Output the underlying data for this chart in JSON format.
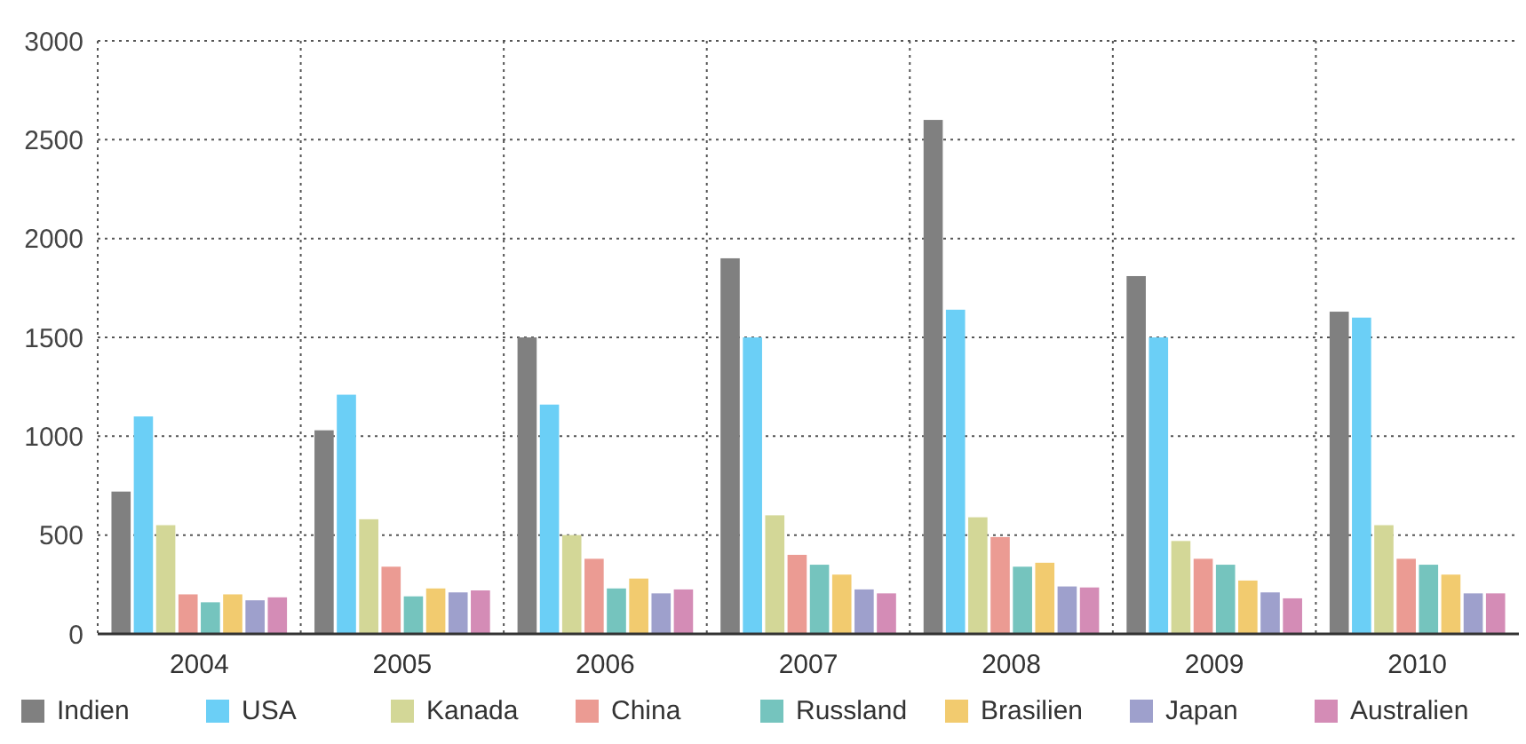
{
  "chart_data": {
    "type": "bar",
    "categories": [
      "2004",
      "2005",
      "2006",
      "2007",
      "2008",
      "2009",
      "2010"
    ],
    "series": [
      {
        "name": "Indien",
        "color": "#808080",
        "values": [
          720,
          1030,
          1500,
          1900,
          2600,
          1810,
          1630
        ]
      },
      {
        "name": "USA",
        "color": "#6bcff6",
        "values": [
          1100,
          1210,
          1160,
          1500,
          1640,
          1500,
          1600
        ]
      },
      {
        "name": "Kanada",
        "color": "#d3d797",
        "values": [
          550,
          580,
          500,
          600,
          590,
          470,
          550
        ]
      },
      {
        "name": "China",
        "color": "#eb9b93",
        "values": [
          200,
          340,
          380,
          400,
          490,
          380,
          380
        ]
      },
      {
        "name": "Russland",
        "color": "#75c4be",
        "values": [
          160,
          190,
          230,
          350,
          340,
          350,
          350
        ]
      },
      {
        "name": "Brasilien",
        "color": "#f2cb6f",
        "values": [
          200,
          230,
          280,
          300,
          360,
          270,
          300
        ]
      },
      {
        "name": "Japan",
        "color": "#9ea0cc",
        "values": [
          170,
          210,
          205,
          225,
          240,
          210,
          205
        ]
      },
      {
        "name": "Australien",
        "color": "#d48cb6",
        "values": [
          185,
          220,
          225,
          205,
          235,
          180,
          205
        ]
      }
    ],
    "ylim": [
      0,
      3000
    ],
    "yticks": [
      0,
      500,
      1000,
      1500,
      2000,
      2500,
      3000
    ],
    "grid": true,
    "legend": "bottom"
  }
}
